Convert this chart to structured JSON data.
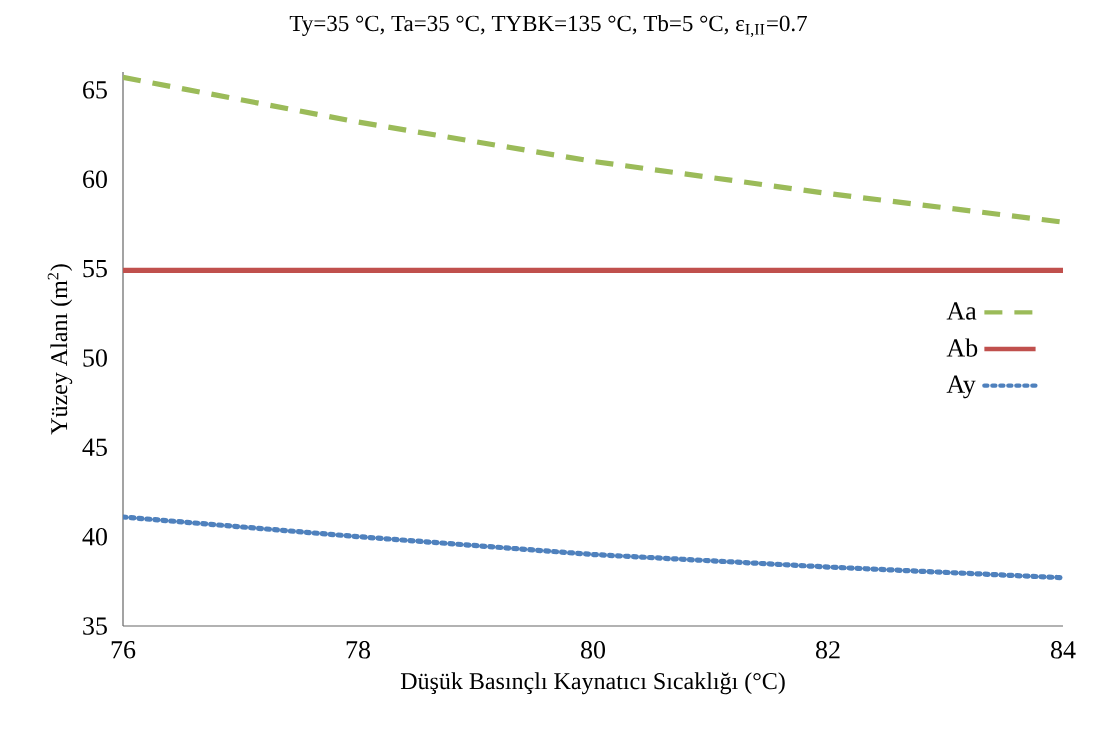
{
  "chart_data": {
    "type": "line",
    "title": "Ty=35 °C, Ta=35 °C, TYBK=135 °C, Tb=5 °C, ε$_{I,II}$=0.7",
    "xlabel": "Düşük Basınçlı Kaynatıcı Sıcaklığı (°C)",
    "ylabel": "Yüzey Alanı (m$^{2}$)",
    "x": [
      76,
      78,
      80,
      82,
      84
    ],
    "series": [
      {
        "name": "Aa",
        "color": "#9bbb59",
        "line_style": "dashed",
        "values": [
          65.7,
          63.2,
          61.0,
          59.2,
          57.6
        ]
      },
      {
        "name": "Ab",
        "color": "#c0504d",
        "line_style": "solid",
        "values": [
          54.9,
          54.9,
          54.9,
          54.9,
          54.9
        ]
      },
      {
        "name": "Ay",
        "color": "#4f81bd",
        "line_style": "dotted",
        "values": [
          41.1,
          40.0,
          39.0,
          38.3,
          37.7
        ]
      }
    ],
    "xlim": [
      76,
      84
    ],
    "xticks": [
      76,
      78,
      80,
      82,
      84
    ],
    "ylim": [
      35,
      66
    ],
    "yticks": [
      35,
      40,
      45,
      50,
      55,
      60,
      65
    ],
    "grid": false,
    "legend": "right"
  }
}
